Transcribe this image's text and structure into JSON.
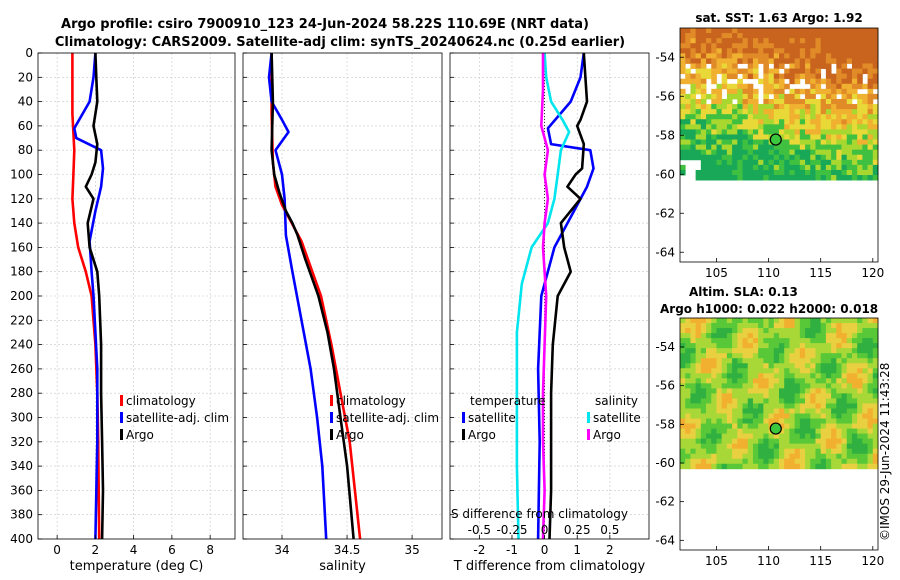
{
  "header": {
    "line1": "Argo profile: csiro 7900910_123 24-Jun-2024 58.22S 110.69E (NRT data)",
    "line2": "Climatology: CARS2009. Satellite-adj clim: synTS_20240624.nc (0.25d earlier)"
  },
  "colors": {
    "climatology": "#ff0000",
    "satellite": "#0000ff",
    "argo": "#000000",
    "sal_satellite": "#00e5ee",
    "sal_diff": "#ff00ff"
  },
  "stamp": "©IMOS 29-Jun-2024 11:43:28",
  "chart_data": [
    {
      "id": "temperature",
      "type": "line",
      "xlabel": "temperature (deg C)",
      "ylabel": "",
      "xlim": [
        -1,
        9.3
      ],
      "ylim": [
        0,
        400
      ],
      "xticks": [
        0,
        2,
        4,
        6,
        8
      ],
      "yticks": [
        0,
        20,
        40,
        60,
        80,
        100,
        120,
        140,
        160,
        180,
        200,
        220,
        240,
        260,
        280,
        300,
        320,
        340,
        360,
        380,
        400
      ],
      "grid": true,
      "legend": {
        "position": "center-right",
        "entries": [
          "climatology",
          "satellite-adj. clim",
          "Argo"
        ]
      },
      "series": [
        {
          "name": "climatology",
          "color": "#ff0000",
          "points": [
            [
              0.8,
              0
            ],
            [
              0.8,
              20
            ],
            [
              0.8,
              50
            ],
            [
              0.9,
              80
            ],
            [
              0.85,
              100
            ],
            [
              0.8,
              120
            ],
            [
              0.9,
              140
            ],
            [
              1.1,
              160
            ],
            [
              1.5,
              180
            ],
            [
              1.8,
              200
            ],
            [
              2.0,
              240
            ],
            [
              2.1,
              280
            ],
            [
              2.15,
              320
            ],
            [
              2.2,
              400
            ]
          ]
        },
        {
          "name": "satellite-adj. clim",
          "color": "#0000ff",
          "points": [
            [
              2.0,
              0
            ],
            [
              1.9,
              20
            ],
            [
              1.7,
              40
            ],
            [
              0.9,
              62
            ],
            [
              1.0,
              70
            ],
            [
              2.3,
              80
            ],
            [
              2.4,
              95
            ],
            [
              2.3,
              110
            ],
            [
              2.0,
              130
            ],
            [
              1.7,
              155
            ],
            [
              1.8,
              180
            ],
            [
              1.9,
              200
            ],
            [
              2.1,
              260
            ],
            [
              2.1,
              320
            ],
            [
              2.0,
              400
            ]
          ]
        },
        {
          "name": "Argo",
          "color": "#000000",
          "points": [
            [
              2.0,
              0
            ],
            [
              2.05,
              20
            ],
            [
              2.1,
              40
            ],
            [
              2.0,
              50
            ],
            [
              1.9,
              60
            ],
            [
              2.1,
              75
            ],
            [
              2.0,
              90
            ],
            [
              1.8,
              100
            ],
            [
              1.5,
              110
            ],
            [
              1.9,
              120
            ],
            [
              1.6,
              140
            ],
            [
              1.7,
              160
            ],
            [
              2.1,
              180
            ],
            [
              2.2,
              200
            ],
            [
              2.3,
              240
            ],
            [
              2.3,
              280
            ],
            [
              2.35,
              320
            ],
            [
              2.4,
              360
            ],
            [
              2.35,
              400
            ]
          ]
        }
      ]
    },
    {
      "id": "salinity",
      "type": "line",
      "xlabel": "salinity",
      "ylabel": "",
      "xlim": [
        33.7,
        35.23
      ],
      "ylim": [
        0,
        400
      ],
      "xticks": [
        34,
        34.5,
        35
      ],
      "yticks": [
        0,
        100,
        200,
        300,
        400
      ],
      "grid": true,
      "legend": {
        "position": "center-right",
        "entries": [
          "climatology",
          "satellite-adj. clim",
          "Argo"
        ]
      },
      "series": [
        {
          "name": "climatology",
          "color": "#ff0000",
          "points": [
            [
              33.92,
              0
            ],
            [
              33.92,
              50
            ],
            [
              33.93,
              90
            ],
            [
              33.95,
              110
            ],
            [
              34.0,
              125
            ],
            [
              34.05,
              135
            ],
            [
              34.1,
              145
            ],
            [
              34.15,
              155
            ],
            [
              34.2,
              170
            ],
            [
              34.3,
              200
            ],
            [
              34.38,
              240
            ],
            [
              34.45,
              280
            ],
            [
              34.52,
              320
            ],
            [
              34.56,
              360
            ],
            [
              34.6,
              400
            ]
          ]
        },
        {
          "name": "satellite-adj. clim",
          "color": "#0000ff",
          "points": [
            [
              33.92,
              0
            ],
            [
              33.9,
              20
            ],
            [
              33.92,
              40
            ],
            [
              34.0,
              55
            ],
            [
              34.05,
              65
            ],
            [
              33.95,
              80
            ],
            [
              34.0,
              100
            ],
            [
              34.02,
              120
            ],
            [
              34.03,
              150
            ],
            [
              34.08,
              180
            ],
            [
              34.15,
              220
            ],
            [
              34.22,
              260
            ],
            [
              34.27,
              300
            ],
            [
              34.31,
              340
            ],
            [
              34.34,
              400
            ]
          ]
        },
        {
          "name": "Argo",
          "color": "#000000",
          "points": [
            [
              33.92,
              0
            ],
            [
              33.93,
              40
            ],
            [
              33.92,
              80
            ],
            [
              33.94,
              100
            ],
            [
              33.98,
              115
            ],
            [
              34.03,
              130
            ],
            [
              34.08,
              140
            ],
            [
              34.12,
              150
            ],
            [
              34.18,
              170
            ],
            [
              34.28,
              200
            ],
            [
              34.35,
              230
            ],
            [
              34.4,
              260
            ],
            [
              34.45,
              300
            ],
            [
              34.5,
              340
            ],
            [
              34.55,
              400
            ]
          ]
        }
      ]
    },
    {
      "id": "difference",
      "type": "line",
      "xlabel": "T difference from climatology",
      "ylabel": "",
      "top_axis_label": "S difference from climatology",
      "xlim": [
        -2.9,
        3.2
      ],
      "ylim": [
        0,
        400
      ],
      "xticks": [
        -2,
        -1,
        0,
        1,
        2
      ],
      "top_xticks": [
        "-0.5",
        "-0.25",
        "0",
        "0.25",
        "0.5"
      ],
      "grid": true,
      "legend_left": {
        "title": "temperature",
        "entries": [
          "satellite",
          "Argo"
        ]
      },
      "legend_right": {
        "title": "salinity",
        "entries": [
          "satellite",
          "Argo"
        ]
      },
      "series": [
        {
          "name": "temperature satellite",
          "color": "#0000ff",
          "points": [
            [
              1.2,
              0
            ],
            [
              1.1,
              20
            ],
            [
              0.8,
              40
            ],
            [
              0.1,
              62
            ],
            [
              0.2,
              75
            ],
            [
              1.4,
              80
            ],
            [
              1.5,
              95
            ],
            [
              1.3,
              110
            ],
            [
              0.9,
              130
            ],
            [
              0.3,
              160
            ],
            [
              -0.1,
              200
            ],
            [
              -0.2,
              260
            ],
            [
              -0.15,
              320
            ],
            [
              -0.2,
              400
            ]
          ]
        },
        {
          "name": "temperature Argo",
          "color": "#000000",
          "points": [
            [
              1.2,
              0
            ],
            [
              1.25,
              20
            ],
            [
              1.3,
              40
            ],
            [
              1.1,
              55
            ],
            [
              1.0,
              60
            ],
            [
              1.2,
              75
            ],
            [
              1.15,
              95
            ],
            [
              0.95,
              100
            ],
            [
              0.7,
              110
            ],
            [
              1.1,
              120
            ],
            [
              0.5,
              140
            ],
            [
              0.6,
              160
            ],
            [
              0.8,
              180
            ],
            [
              0.4,
              200
            ],
            [
              0.25,
              240
            ],
            [
              0.2,
              280
            ],
            [
              0.2,
              320
            ],
            [
              0.2,
              360
            ],
            [
              0.15,
              400
            ]
          ]
        },
        {
          "name": "salinity satellite",
          "color": "#00e5ee",
          "points": [
            [
              0.0,
              0
            ],
            [
              0.05,
              20
            ],
            [
              0.2,
              40
            ],
            [
              0.55,
              55
            ],
            [
              0.75,
              65
            ],
            [
              0.5,
              80
            ],
            [
              0.4,
              100
            ],
            [
              0.3,
              120
            ],
            [
              0.1,
              140
            ],
            [
              -0.4,
              160
            ],
            [
              -0.7,
              190
            ],
            [
              -0.85,
              230
            ],
            [
              -0.85,
              280
            ],
            [
              -0.85,
              340
            ],
            [
              -0.8,
              400
            ]
          ]
        },
        {
          "name": "salinity Argo",
          "color": "#ff00ff",
          "points": [
            [
              -0.05,
              0
            ],
            [
              -0.05,
              30
            ],
            [
              -0.1,
              60
            ],
            [
              0.1,
              80
            ],
            [
              0.0,
              100
            ],
            [
              0.1,
              120
            ],
            [
              0.0,
              140
            ],
            [
              -0.05,
              160
            ],
            [
              0.05,
              200
            ],
            [
              0.0,
              240
            ],
            [
              -0.05,
              280
            ],
            [
              -0.05,
              320
            ],
            [
              0.0,
              360
            ],
            [
              -0.05,
              400
            ]
          ]
        }
      ]
    },
    {
      "id": "sst_map",
      "type": "heatmap",
      "title": "sat. SST: 1.63 Argo: 1.92",
      "xlim": [
        101.5,
        120.5
      ],
      "ylim": [
        -64.5,
        -52.5
      ],
      "xticks": [
        105,
        110,
        115,
        120
      ],
      "yticks": [
        -54,
        -56,
        -58,
        -60,
        -62,
        -64
      ],
      "data_bottom": -60.3,
      "marker": {
        "lon": 110.69,
        "lat": -58.22
      }
    },
    {
      "id": "sla_map",
      "type": "heatmap",
      "title": "Altim. SLA: 0.13",
      "subtitle": "Argo h1000: 0.022 h2000: 0.018",
      "xlim": [
        101.5,
        120.5
      ],
      "ylim": [
        -64.5,
        -52.5
      ],
      "xticks": [
        105,
        110,
        115,
        120
      ],
      "yticks": [
        -54,
        -56,
        -58,
        -60,
        -62,
        -64
      ],
      "data_bottom": -60.3,
      "marker": {
        "lon": 110.69,
        "lat": -58.22
      }
    }
  ]
}
